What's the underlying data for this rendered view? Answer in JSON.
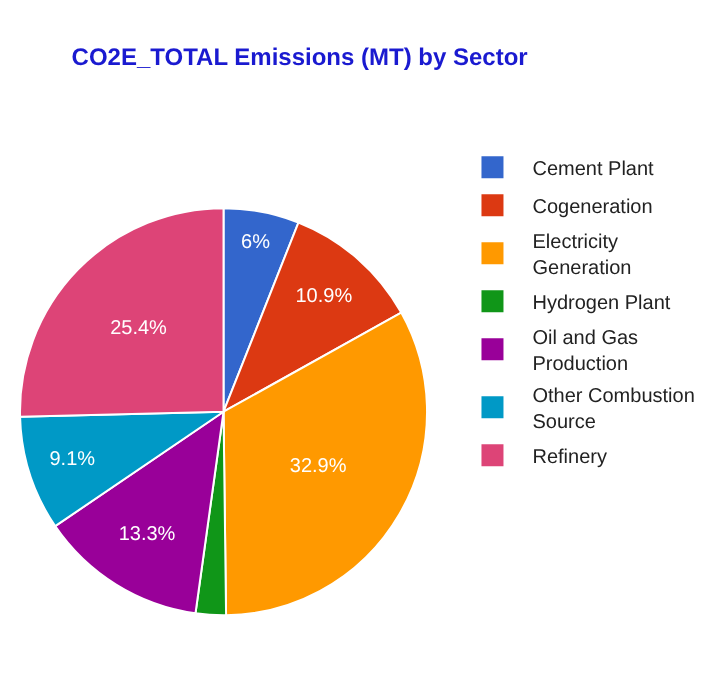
{
  "chart_data": {
    "type": "pie",
    "title": "CO2E_TOTAL Emissions (MT) by Sector",
    "categories": [
      "Cement Plant",
      "Cogeneration",
      "Electricity Generation",
      "Hydrogen Plant",
      "Oil and Gas Production",
      "Other Combustion Source",
      "Refinery"
    ],
    "values": [
      6,
      10.9,
      32.9,
      2.4,
      13.3,
      9.1,
      25.4
    ],
    "colors": [
      "#3366cc",
      "#dc3912",
      "#ff9900",
      "#109618",
      "#990099",
      "#0099c6",
      "#dd4477"
    ],
    "value_labels": [
      "6%",
      "10.9%",
      "32.9%",
      null,
      "13.3%",
      "9.1%",
      "25.4%"
    ],
    "legend": "top right"
  }
}
